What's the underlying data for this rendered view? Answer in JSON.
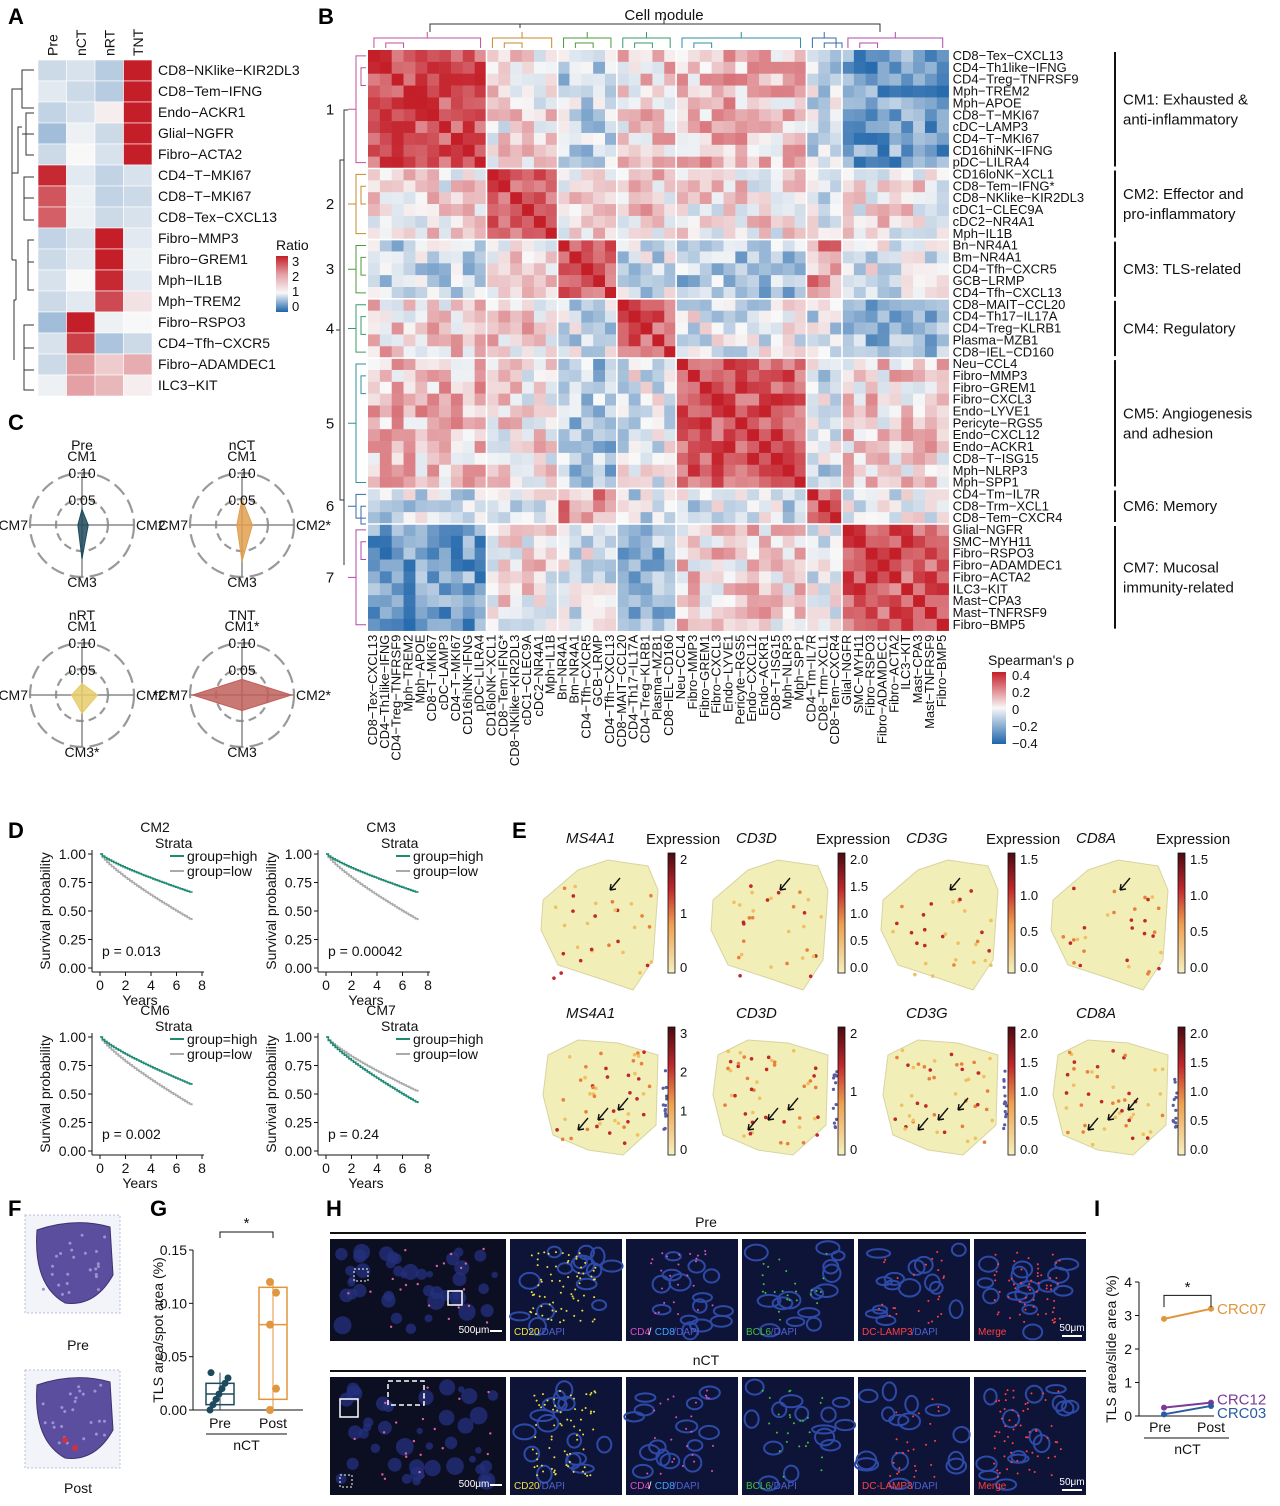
{
  "panels": {
    "A": "A",
    "B": "B",
    "C": "C",
    "D": "D",
    "E": "E",
    "F": "F",
    "G": "G",
    "H": "H",
    "I": "I"
  },
  "panelA": {
    "columns": [
      "Pre",
      "nCT",
      "nRT",
      "TNT"
    ],
    "legend_title": "Ratio",
    "legend_ticks": [
      "3",
      "2",
      "1",
      "0"
    ],
    "rows": [
      {
        "label": "CD8−NKlike−KIR2DL3",
        "values": [
          0.6,
          0.7,
          0.4,
          3.0
        ]
      },
      {
        "label": "CD8−Tem−IFNG",
        "values": [
          0.8,
          0.6,
          0.4,
          3.0
        ]
      },
      {
        "label": "Endo−ACKR1",
        "values": [
          0.5,
          0.7,
          1.1,
          3.0
        ]
      },
      {
        "label": "Glial−NGFR",
        "values": [
          0.2,
          0.9,
          0.6,
          3.0
        ]
      },
      {
        "label": "Fibro−ACTA2",
        "values": [
          0.6,
          1.0,
          0.7,
          3.0
        ]
      },
      {
        "label": "CD4−T−MKI67",
        "values": [
          2.9,
          0.8,
          0.5,
          0.7
        ]
      },
      {
        "label": "CD8−T−MKI67",
        "values": [
          2.5,
          0.9,
          0.5,
          0.6
        ]
      },
      {
        "label": "CD8−Tex−CXCL13",
        "values": [
          2.4,
          0.9,
          0.6,
          0.7
        ]
      },
      {
        "label": "Fibro−MMP3",
        "values": [
          0.5,
          0.7,
          3.0,
          0.8
        ]
      },
      {
        "label": "Fibro−GREM1",
        "values": [
          0.6,
          0.8,
          3.0,
          0.9
        ]
      },
      {
        "label": "Mph−IL1B",
        "values": [
          0.7,
          1.0,
          2.9,
          0.8
        ]
      },
      {
        "label": "Mph−TREM2",
        "values": [
          0.6,
          0.8,
          2.6,
          1.2
        ]
      },
      {
        "label": "Fibro−RSPO3",
        "values": [
          0.2,
          3.0,
          0.9,
          1.0
        ]
      },
      {
        "label": "CD4−Tfh−CXCR5",
        "values": [
          0.7,
          2.7,
          0.3,
          0.6
        ]
      },
      {
        "label": "Fibro−ADAMDEC1",
        "values": [
          0.6,
          1.9,
          1.4,
          1.7
        ]
      },
      {
        "label": "ILC3−KIT",
        "values": [
          0.9,
          1.8,
          1.6,
          1.1
        ]
      }
    ]
  },
  "panelB": {
    "title": "Cell module",
    "legend_title": "Spearman's ρ",
    "legend_ticks": [
      "0.4",
      "0.2",
      "0",
      "−0.2",
      "−0.4"
    ],
    "cells": [
      "CD8−Tex−CXCL13",
      "CD4−Th1like−IFNG",
      "CD4−Treg−TNFRSF9",
      "Mph−TREM2",
      "Mph−APOE",
      "CD8−T−MKI67",
      "cDC−LAMP3",
      "CD4−T−MKI67",
      "CD16hiNK−IFNG",
      "pDC−LILRA4",
      "CD16loNK−XCL1",
      "CD8−Tem−IFNG*",
      "CD8−NKlike−KIR2DL3",
      "cDC1−CLEC9A",
      "cDC2−NR4A1",
      "Mph−IL1B",
      "Bn−NR4A1",
      "Bm−NR4A1",
      "CD4−Tfh−CXCR5",
      "GCB−LRMP",
      "CD4−Tfh−CXCL13",
      "CD8−MAIT−CCL20",
      "CD4−Th17−IL17A",
      "CD4−Treg−KLRB1",
      "Plasma−MZB1",
      "CD8−IEL−CD160",
      "Neu−CCL4",
      "Fibro−MMP3",
      "Fibro−GREM1",
      "Fibro−CXCL3",
      "Endo−LYVE1",
      "Pericyte−RGS5",
      "Endo−CXCL12",
      "Endo−ACKR1",
      "CD8−T−ISG15",
      "Mph−NLRP3",
      "Mph−SPP1",
      "CD4−Tm−IL7R",
      "CD8−Trm−XCL1",
      "CD8−Tem−CXCR4",
      "Glial−NGFR",
      "SMC−MYH11",
      "Fibro−RSPO3",
      "Fibro−ADAMDEC1",
      "Fibro−ACTA2",
      "ILC3−KIT",
      "Mast−CPA3",
      "Mast−TNFRSF9",
      "Fibro−BMP5"
    ],
    "module_sizes": [
      10,
      6,
      5,
      5,
      11,
      3,
      9
    ],
    "module_numbers": [
      "1",
      "2",
      "3",
      "4",
      "5",
      "6",
      "7"
    ],
    "module_colors": [
      "#c0509a",
      "#c88a2c",
      "#4e9a3a",
      "#3a9a6a",
      "#2f8fa0",
      "#3a6aa8",
      "#b04aa8"
    ],
    "module_labels": [
      [
        "CM1: Exhausted &",
        "anti-inflammatory"
      ],
      [
        "CM2: Effector and",
        "pro-inflammatory"
      ],
      [
        "CM3: TLS-related"
      ],
      [
        "CM4: Regulatory"
      ],
      [
        "CM5: Angiogenesis",
        "and adhesion"
      ],
      [
        "CM6: Memory"
      ],
      [
        "CM7: Mucosal",
        "immunity-related"
      ]
    ]
  },
  "panelC": {
    "charts": [
      {
        "title": "Pre",
        "top": "CM1",
        "right": "CM2",
        "bottom": "CM3",
        "left": "CM7",
        "fill": "#1d4a5c",
        "values": [
          0.03,
          0.012,
          0.065,
          0.008
        ]
      },
      {
        "title": "nCT",
        "top": "CM1",
        "right": "CM2*",
        "bottom": "CM3",
        "left": "CM7",
        "fill": "#e0a050",
        "values": [
          0.05,
          0.02,
          0.07,
          0.01
        ]
      },
      {
        "title": "nRT",
        "top": "CM1",
        "right": "CM2 *",
        "bottom": "CM3*",
        "left": "CM7",
        "fill": "#e8cc6a",
        "values": [
          0.022,
          0.03,
          0.035,
          0.02
        ]
      },
      {
        "title": "TNT",
        "top": "CM1*",
        "right": "CM2*",
        "bottom": "CM3",
        "left": "*CM7",
        "fill": "#c0605a",
        "values": [
          0.03,
          0.095,
          0.03,
          0.095
        ]
      }
    ],
    "ring_outer": "0.10",
    "ring_inner": "0.05"
  },
  "panelD": {
    "strata_title": "Strata",
    "high_label": "group=high",
    "low_label": "group=low",
    "ylabel": "Survival probability",
    "xlabel": "Years",
    "yticks": [
      "1.00",
      "0.75",
      "0.50",
      "0.25",
      "0.00"
    ],
    "xticks": [
      "0",
      "2",
      "4",
      "6",
      "8"
    ],
    "high_color": "#1e8a72",
    "low_color": "#aaaaaa",
    "plots": [
      {
        "title": "CM2",
        "pvalue": "p = 0.013",
        "high_end": 0.66,
        "low_end": 0.42
      },
      {
        "title": "CM3",
        "pvalue": "p = 0.00042",
        "high_end": 0.66,
        "low_end": 0.42
      },
      {
        "title": "CM6",
        "pvalue": "p = 0.002",
        "high_end": 0.58,
        "low_end": 0.4
      },
      {
        "title": "CM7",
        "pvalue": "p = 0.24",
        "high_end": 0.42,
        "low_end": 0.52
      }
    ]
  },
  "panelE": {
    "legend_title": "Expression",
    "row1": [
      {
        "gene": "MS4A1",
        "ticks": [
          "2",
          "1",
          "0"
        ]
      },
      {
        "gene": "CD3D",
        "ticks": [
          "2.0",
          "1.5",
          "1.0",
          "0.5",
          "0.0"
        ]
      },
      {
        "gene": "CD3G",
        "ticks": [
          "1.5",
          "1.0",
          "0.5",
          "0.0"
        ]
      },
      {
        "gene": "CD8A",
        "ticks": [
          "1.5",
          "1.0",
          "0.5",
          "0.0"
        ]
      }
    ],
    "row2": [
      {
        "gene": "MS4A1",
        "ticks": [
          "3",
          "2",
          "1",
          "0"
        ]
      },
      {
        "gene": "CD3D",
        "ticks": [
          "2",
          "1",
          "0"
        ]
      },
      {
        "gene": "CD3G",
        "ticks": [
          "2.0",
          "1.5",
          "1.0",
          "0.5",
          "0.0"
        ]
      },
      {
        "gene": "CD8A",
        "ticks": [
          "2.0",
          "1.5",
          "1.0",
          "0.5",
          "0.0"
        ]
      }
    ]
  },
  "panelF": {
    "pre_label": "Pre",
    "post_label": "Post"
  },
  "panelG": {
    "ylabel": "TLS area/spot area (%)",
    "yticks": [
      "0.15",
      "0.10",
      "0.05",
      "0.00"
    ],
    "groups": [
      "Pre",
      "Post"
    ],
    "group_label": "nCT",
    "sig": "*",
    "pre_values": [
      0.0,
      0.005,
      0.01,
      0.015,
      0.02,
      0.025,
      0.03,
      0.035
    ],
    "post_values": [
      0.0,
      0.02,
      0.08,
      0.11,
      0.12
    ]
  },
  "panelH": {
    "row1_title": "Pre",
    "row2_title": "nCT",
    "scale_big": "500μm",
    "scale_small": "50μm",
    "channels": [
      {
        "parts": [
          "CD20",
          "/DAPI"
        ],
        "colors": [
          "#f0e040",
          "#5060d0"
        ]
      },
      {
        "parts": [
          "CD4",
          "/",
          "CD8",
          "/DAPI"
        ],
        "colors": [
          "#e050c0",
          "#ffffff",
          "#40a0ff",
          "#5060d0"
        ]
      },
      {
        "parts": [
          "BCL6",
          "/DAPI"
        ],
        "colors": [
          "#40c040",
          "#5060d0"
        ]
      },
      {
        "parts": [
          "DC-LAMP3",
          "/DAPI"
        ],
        "colors": [
          "#ff4040",
          "#5060d0"
        ]
      },
      {
        "parts": [
          "Merge"
        ],
        "colors": [
          "#ff4040"
        ]
      }
    ]
  },
  "panelI": {
    "ylabel": "TLS area/slide area (%)",
    "yticks": [
      "4",
      "3",
      "2",
      "1",
      "0"
    ],
    "groups": [
      "Pre",
      "Post"
    ],
    "group_label": "nCT",
    "sig": "*",
    "series": [
      {
        "name": "CRC07",
        "pre": 2.9,
        "post": 3.2,
        "color": "#e0963c"
      },
      {
        "name": "CRC12",
        "pre": 0.25,
        "post": 0.4,
        "color": "#7a3a9a"
      },
      {
        "name": "CRC03",
        "pre": 0.05,
        "post": 0.3,
        "color": "#2a5aa0"
      }
    ]
  }
}
